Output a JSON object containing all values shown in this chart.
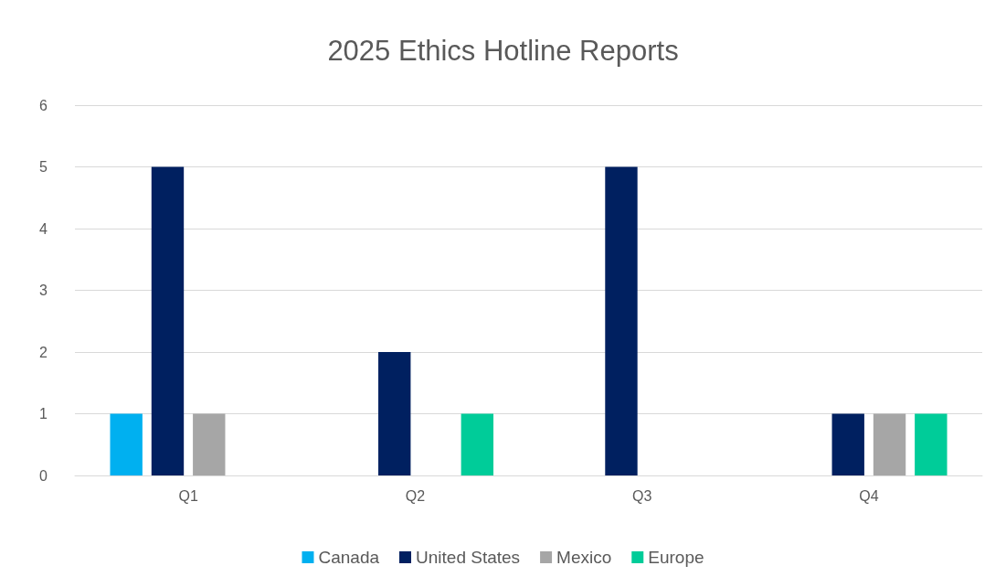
{
  "chart_data": {
    "type": "bar",
    "title": "2025 Ethics Hotline Reports",
    "categories": [
      "Q1",
      "Q2",
      "Q3",
      "Q4"
    ],
    "series": [
      {
        "name": "Canada",
        "color": "#00b0f0",
        "values": [
          1,
          0,
          0,
          0
        ]
      },
      {
        "name": "United States",
        "color": "#002060",
        "values": [
          5,
          2,
          5,
          1
        ]
      },
      {
        "name": "Mexico",
        "color": "#a6a6a6",
        "values": [
          1,
          0,
          0,
          1
        ]
      },
      {
        "name": "Europe",
        "color": "#00cc99",
        "values": [
          0,
          1,
          0,
          1
        ]
      }
    ],
    "ylim": [
      0,
      6
    ],
    "yticks": [
      0,
      1,
      2,
      3,
      4,
      5,
      6
    ],
    "grid": "y",
    "legend": "bottom"
  }
}
